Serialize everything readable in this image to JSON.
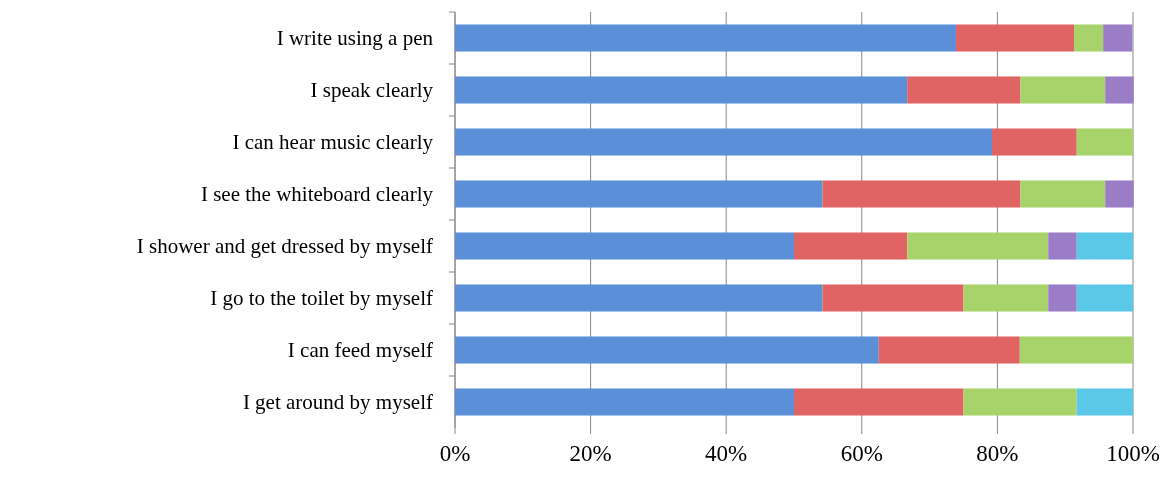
{
  "chart_data": {
    "type": "bar",
    "orientation": "horizontal",
    "stacked": true,
    "categories": [
      "I write using a pen",
      "I speak clearly",
      "I can hear music clearly",
      "I see the whiteboard clearly",
      "I shower and get dressed by myself",
      "I go to the toilet by myself",
      "I can feed myself",
      "I get around by myself"
    ],
    "series": [
      {
        "color": "#5b8fd8",
        "values": [
          73.9,
          66.7,
          79.2,
          54.2,
          50,
          54.2,
          62.5,
          50
        ]
      },
      {
        "color": "#e06464",
        "values": [
          17.4,
          16.7,
          12.5,
          29.2,
          16.7,
          20.8,
          20.8,
          25
        ]
      },
      {
        "color": "#a8d36b",
        "values": [
          4.3,
          12.5,
          8.3,
          12.5,
          20.8,
          12.5,
          16.7,
          16.7
        ]
      },
      {
        "color": "#9a7dc6",
        "values": [
          4.3,
          4.2,
          0,
          4.2,
          4.2,
          4.2,
          0,
          0
        ]
      },
      {
        "color": "#5cc8e8",
        "values": [
          0,
          0,
          0,
          0,
          8.3,
          8.3,
          0,
          8.3
        ]
      }
    ],
    "xlim": [
      0,
      100
    ],
    "xticks": [
      {
        "value": 0,
        "label": "0%"
      },
      {
        "value": 20,
        "label": "20%"
      },
      {
        "value": 40,
        "label": "40%"
      },
      {
        "value": 60,
        "label": "60%"
      },
      {
        "value": 80,
        "label": "80%"
      },
      {
        "value": 100,
        "label": "100%"
      }
    ],
    "grid": "x"
  }
}
